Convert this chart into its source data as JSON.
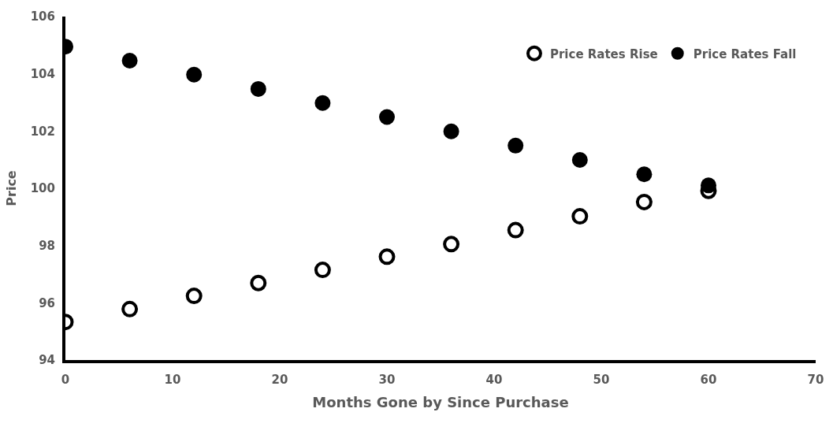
{
  "chart_data": {
    "type": "scatter",
    "xlabel": "Months Gone by Since Purchase",
    "ylabel": "Price",
    "x": [
      0,
      6,
      12,
      18,
      24,
      30,
      36,
      42,
      48,
      54,
      60
    ],
    "series": [
      {
        "name": "Price Rates Rise",
        "color": "#000000",
        "marker": "circle-open",
        "values": [
          95.33,
          95.78,
          96.24,
          96.69,
          97.15,
          97.61,
          98.05,
          98.54,
          99.02,
          99.52,
          99.91
        ]
      },
      {
        "name": "Price Rates Fall",
        "color": "#000000",
        "marker": "circle",
        "values": [
          104.95,
          104.46,
          103.97,
          103.47,
          102.98,
          102.49,
          101.99,
          101.49,
          100.99,
          100.49,
          100.1
        ]
      }
    ],
    "xlim": [
      0,
      70
    ],
    "xticks": [
      0,
      10,
      20,
      30,
      40,
      50,
      60,
      70
    ],
    "ylim": [
      94,
      106
    ],
    "yticks": [
      94,
      96,
      98,
      100,
      102,
      104,
      106
    ],
    "legend": "top right"
  }
}
